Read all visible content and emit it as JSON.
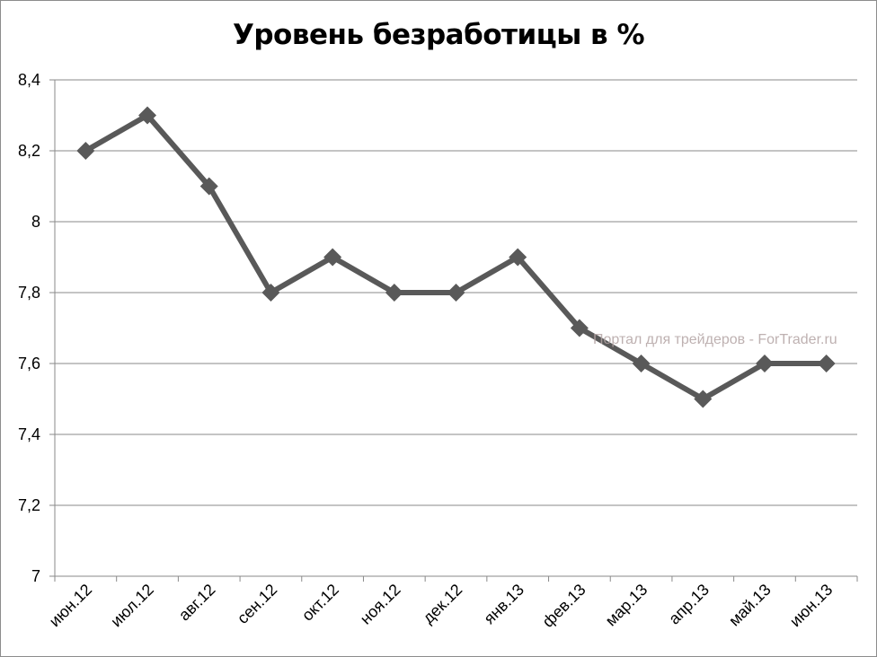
{
  "chart_data": {
    "type": "line",
    "title": "Уровень безработицы в %",
    "xlabel": "",
    "ylabel": "",
    "categories": [
      "июн.12",
      "июл.12",
      "авг.12",
      "сен.12",
      "окт.12",
      "ноя.12",
      "дек.12",
      "янв.13",
      "фев.13",
      "мар.13",
      "апр.13",
      "май.13",
      "июн.13"
    ],
    "series": [
      {
        "values": [
          8.2,
          8.3,
          8.1,
          7.8,
          7.9,
          7.8,
          7.8,
          7.9,
          7.7,
          7.6,
          7.5,
          7.6,
          7.6
        ]
      }
    ],
    "ylim": [
      7,
      8.4
    ],
    "yticks": [
      7,
      7.2,
      7.4,
      7.6,
      7.8,
      8,
      8.2,
      8.4
    ],
    "ytick_labels": [
      "7",
      "7,2",
      "7,4",
      "7,6",
      "7,8",
      "8",
      "8,2",
      "8,4"
    ],
    "grid": true,
    "legend": "none",
    "marker": "diamond",
    "line_color": "#595959",
    "grid_color": "#8a8a8a"
  },
  "watermark": "Портал для трейдеров - ForTrader.ru"
}
